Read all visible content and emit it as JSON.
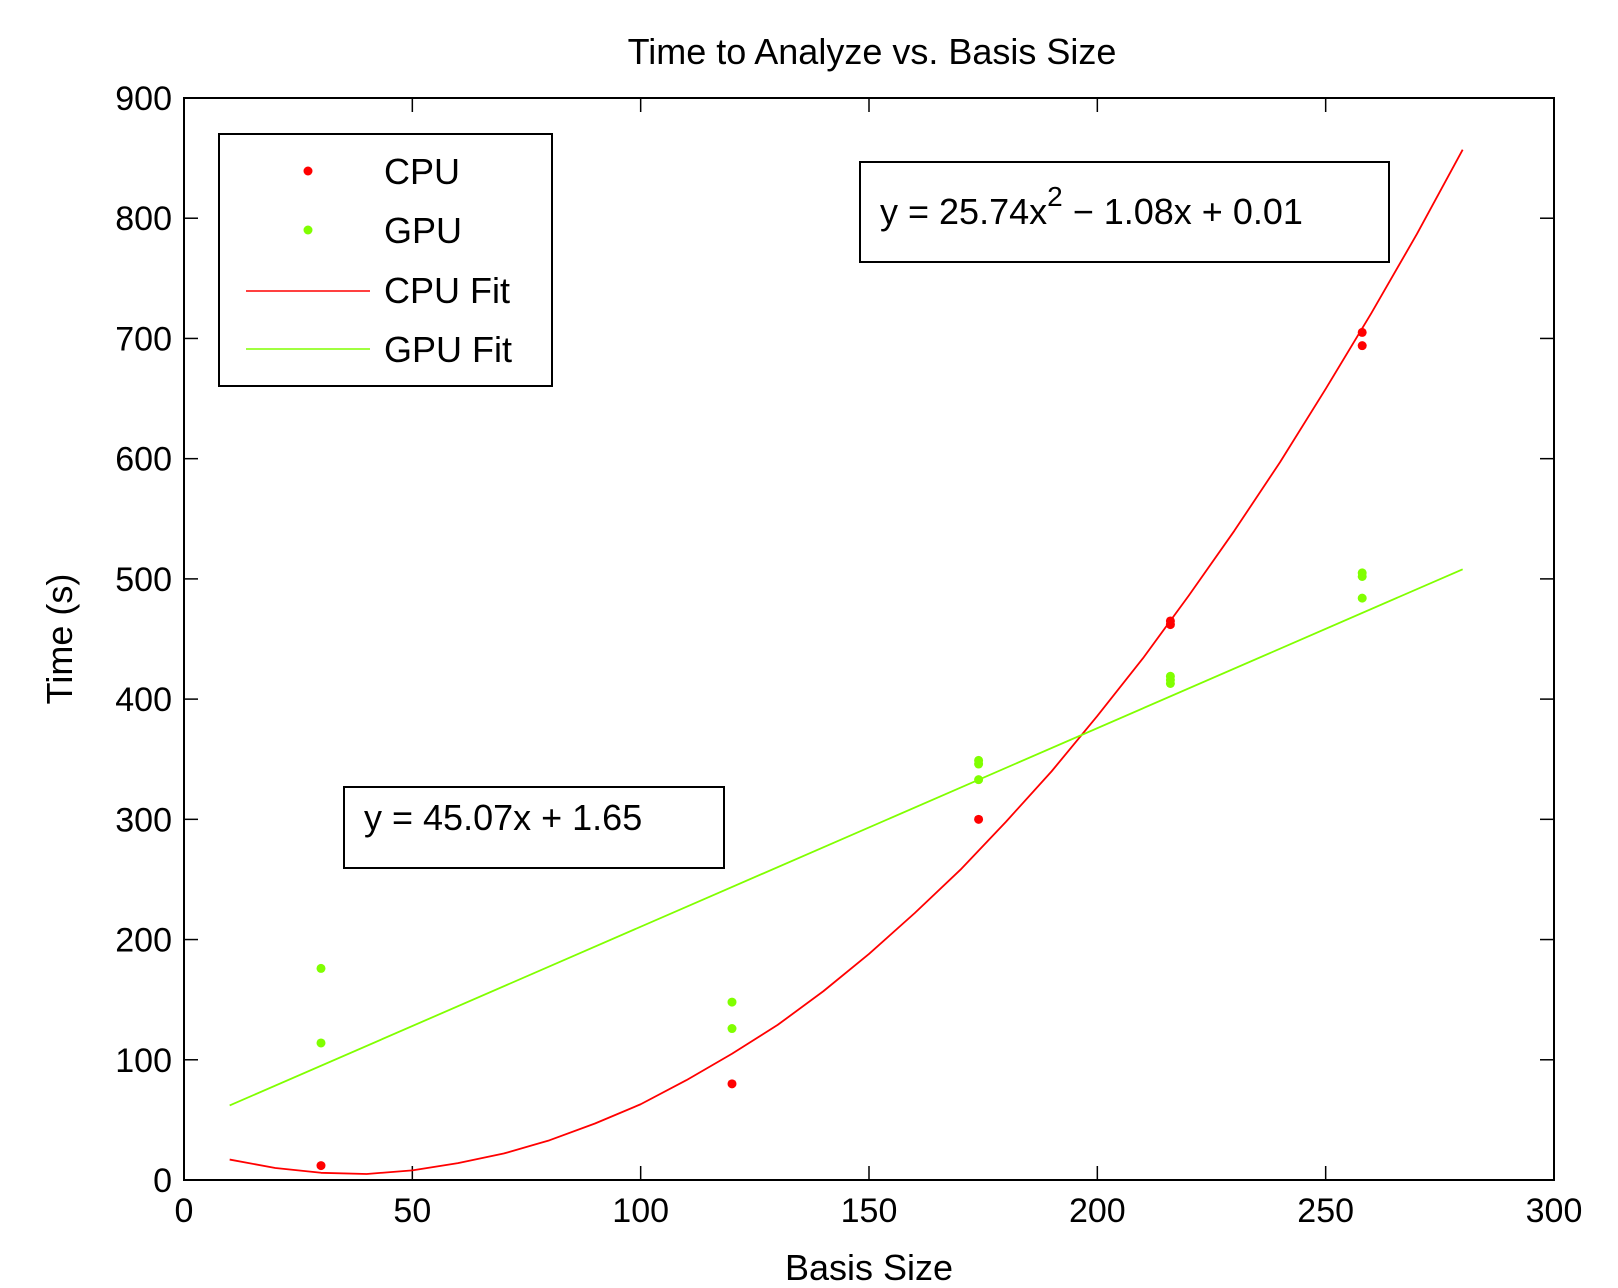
{
  "chart_data": {
    "type": "scatter",
    "title": "Time to Analyze vs. Basis Size",
    "xlabel": "Basis Size",
    "ylabel": "Time (s)",
    "xlim": [
      0,
      300
    ],
    "ylim": [
      0,
      900
    ],
    "xticks": [
      0,
      50,
      100,
      150,
      200,
      250,
      300
    ],
    "yticks": [
      0,
      100,
      200,
      300,
      400,
      500,
      600,
      700,
      800,
      900
    ],
    "grid": false,
    "legend_position": "top-left",
    "legend": [
      {
        "label": "CPU",
        "kind": "marker",
        "color": "#ff0000"
      },
      {
        "label": "GPU",
        "kind": "marker",
        "color": "#80ff00"
      },
      {
        "label": "CPU Fit",
        "kind": "line",
        "color": "#ff0000"
      },
      {
        "label": "GPU Fit",
        "kind": "line",
        "color": "#80ff00"
      }
    ],
    "series": [
      {
        "name": "CPU",
        "color": "#ff0000",
        "points": [
          [
            30,
            12
          ],
          [
            120,
            80
          ],
          [
            174,
            300
          ],
          [
            216,
            462
          ],
          [
            216,
            465
          ],
          [
            258,
            694
          ],
          [
            258,
            705
          ]
        ]
      },
      {
        "name": "GPU",
        "color": "#80ff00",
        "points": [
          [
            30,
            114
          ],
          [
            30,
            176
          ],
          [
            120,
            126
          ],
          [
            120,
            148
          ],
          [
            174,
            333
          ],
          [
            174,
            346
          ],
          [
            174,
            349
          ],
          [
            216,
            413
          ],
          [
            216,
            416
          ],
          [
            216,
            419
          ],
          [
            258,
            484
          ],
          [
            258,
            502
          ],
          [
            258,
            505
          ]
        ]
      },
      {
        "name": "CPU Fit",
        "color": "#ff0000",
        "points": [
          [
            10,
            17
          ],
          [
            20,
            10
          ],
          [
            30,
            6
          ],
          [
            40,
            5
          ],
          [
            50,
            8
          ],
          [
            60,
            14
          ],
          [
            70,
            22
          ],
          [
            80,
            33
          ],
          [
            90,
            47
          ],
          [
            100,
            63
          ],
          [
            110,
            83
          ],
          [
            120,
            105
          ],
          [
            130,
            129
          ],
          [
            140,
            157
          ],
          [
            150,
            188
          ],
          [
            160,
            222
          ],
          [
            170,
            258
          ],
          [
            180,
            298
          ],
          [
            190,
            340
          ],
          [
            200,
            386
          ],
          [
            210,
            434
          ],
          [
            220,
            486
          ],
          [
            230,
            540
          ],
          [
            240,
            597
          ],
          [
            250,
            658
          ],
          [
            260,
            721
          ],
          [
            270,
            787
          ],
          [
            280,
            857
          ]
        ]
      },
      {
        "name": "GPU Fit",
        "color": "#80ff00",
        "points": [
          [
            10,
            62
          ],
          [
            280,
            508
          ]
        ]
      }
    ],
    "annotations": [
      {
        "id": "cpu-eq",
        "text_main": "y = 25.74x",
        "text_sup": "2",
        "text_rest": " − 1.08x + 0.01"
      },
      {
        "id": "gpu-eq",
        "text": "y = 45.07x + 1.65"
      }
    ]
  }
}
